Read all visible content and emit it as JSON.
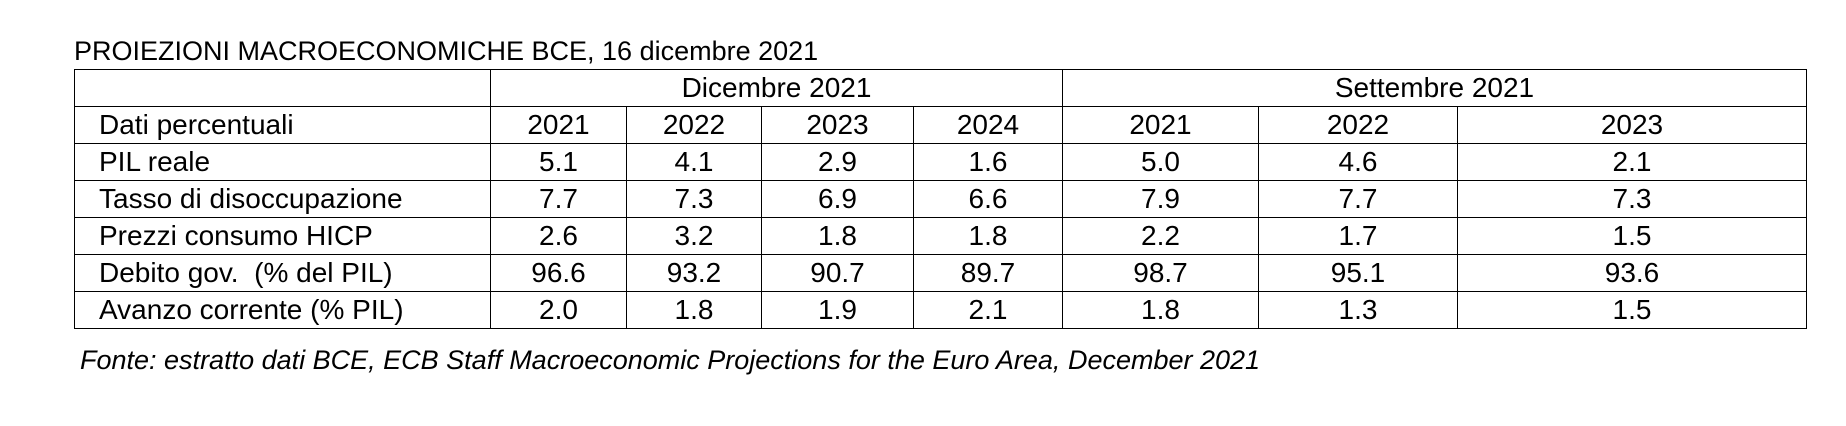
{
  "title": "PROIEZIONI MACROECONOMICHE BCE, 16 dicembre 2021",
  "group_headers": {
    "empty": "",
    "dicembre": "Dicembre 2021",
    "settembre": "Settembre 2021"
  },
  "column_header_label": "Dati percentuali",
  "years": [
    "2021",
    "2022",
    "2023",
    "2024",
    "2021",
    "2022",
    "2023"
  ],
  "rows": [
    {
      "label": "PIL reale",
      "values": [
        "5.1",
        "4.1",
        "2.9",
        "1.6",
        "5.0",
        "4.6",
        "2.1"
      ]
    },
    {
      "label": "Tasso di disoccupazione",
      "values": [
        "7.7",
        "7.3",
        "6.9",
        "6.6",
        "7.9",
        "7.7",
        "7.3"
      ]
    },
    {
      "label": "Prezzi consumo HICP",
      "values": [
        "2.6",
        "3.2",
        "1.8",
        "1.8",
        "2.2",
        "1.7",
        "1.5"
      ]
    },
    {
      "label": "Debito gov.  (% del PIL)",
      "values": [
        "96.6",
        "93.2",
        "90.7",
        "89.7",
        "98.7",
        "95.1",
        "93.6"
      ]
    },
    {
      "label": "Avanzo corrente (% PIL)",
      "values": [
        "2.0",
        "1.8",
        "1.9",
        "2.1",
        "1.8",
        "1.3",
        "1.5"
      ]
    }
  ],
  "source": "Fonte: estratto dati BCE, ECB Staff Macroeconomic Projections for the Euro Area, December 2021"
}
